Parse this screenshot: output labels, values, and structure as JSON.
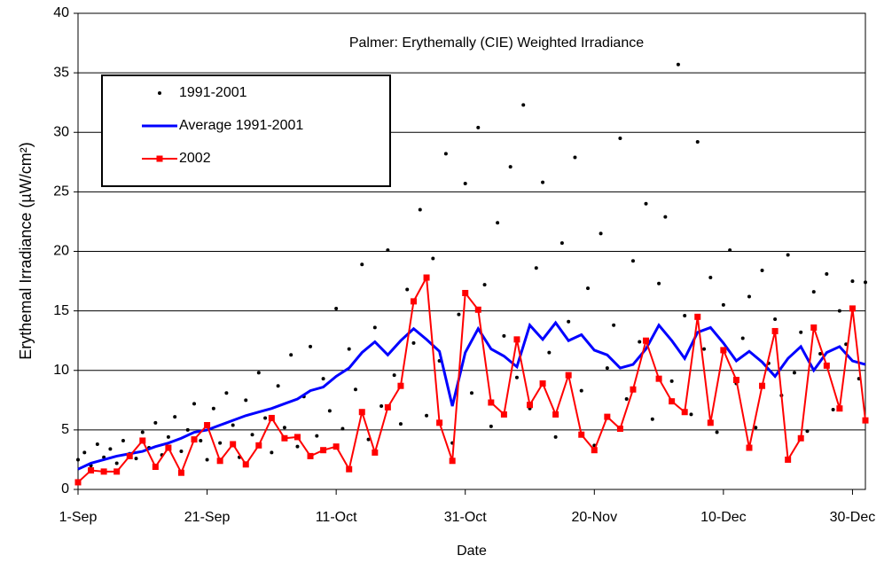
{
  "chart_data": {
    "type": "line",
    "title": "Palmer: Erythemally (CIE) Weighted Irradiance",
    "x_label": "Date",
    "y_label": "Erythemal Irradiance (µW/cm²)",
    "xlim": [
      0,
      122
    ],
    "xticks": [
      {
        "value": 0,
        "label": "1-Sep"
      },
      {
        "value": 20,
        "label": "21-Sep"
      },
      {
        "value": 40,
        "label": "11-Oct"
      },
      {
        "value": 60,
        "label": "31-Oct"
      },
      {
        "value": 80,
        "label": "20-Nov"
      },
      {
        "value": 100,
        "label": "10-Dec"
      },
      {
        "value": 120,
        "label": "30-Dec"
      }
    ],
    "ylim": [
      0,
      40
    ],
    "yticks": [
      0,
      5,
      10,
      15,
      20,
      25,
      30,
      35,
      40
    ],
    "grid": true,
    "legend": "upper left",
    "series": [
      {
        "name": "1991-2001",
        "color": "#000000",
        "style": "points",
        "x": [
          0,
          1,
          2,
          3,
          4,
          5,
          6,
          7,
          8,
          9,
          10,
          11,
          12,
          13,
          14,
          15,
          16,
          17,
          18,
          19,
          20,
          21,
          22,
          23,
          24,
          25,
          26,
          27,
          28,
          29,
          30,
          31,
          32,
          33,
          34,
          35,
          36,
          37,
          38,
          39,
          40,
          41,
          42,
          43,
          44,
          45,
          46,
          47,
          48,
          49,
          50,
          51,
          52,
          53,
          54,
          55,
          56,
          57,
          58,
          59,
          60,
          61,
          62,
          63,
          64,
          65,
          66,
          67,
          68,
          69,
          70,
          71,
          72,
          73,
          74,
          75,
          76,
          77,
          78,
          79,
          80,
          81,
          82,
          83,
          84,
          85,
          86,
          87,
          88,
          89,
          90,
          91,
          92,
          93,
          94,
          95,
          96,
          97,
          98,
          99,
          100,
          101,
          102,
          103,
          104,
          105,
          106,
          107,
          108,
          109,
          110,
          111,
          112,
          113,
          114,
          115,
          116,
          117,
          118,
          119,
          120,
          121,
          122
        ],
        "values": [
          2.5,
          3.1,
          2.0,
          3.8,
          2.7,
          3.4,
          2.2,
          4.1,
          3.0,
          2.6,
          4.8,
          3.5,
          5.6,
          2.9,
          4.4,
          6.1,
          3.2,
          5.0,
          7.2,
          4.1,
          2.5,
          6.8,
          3.9,
          8.1,
          5.4,
          2.7,
          7.5,
          4.6,
          9.8,
          6.0,
          3.1,
          8.7,
          5.2,
          11.3,
          3.6,
          7.8,
          12.0,
          4.5,
          9.3,
          6.6,
          15.2,
          5.1,
          11.8,
          8.4,
          18.9,
          4.2,
          13.6,
          7.0,
          20.1,
          9.6,
          5.5,
          16.8,
          12.3,
          23.5,
          6.2,
          19.4,
          10.8,
          28.2,
          3.9,
          14.7,
          25.7,
          8.1,
          30.4,
          17.2,
          5.3,
          22.4,
          12.9,
          27.1,
          9.4,
          32.3,
          6.8,
          18.6,
          25.8,
          11.5,
          4.4,
          20.7,
          14.1,
          27.9,
          8.3,
          16.9,
          3.7,
          21.5,
          10.2,
          13.8,
          29.5,
          7.6,
          19.2,
          12.4,
          24.0,
          5.9,
          17.3,
          22.9,
          9.1,
          35.7,
          14.6,
          6.3,
          29.2,
          11.8,
          17.8,
          4.8,
          15.5,
          20.1,
          8.9,
          12.7,
          16.2,
          5.2,
          18.4,
          10.6,
          14.3,
          7.9,
          19.7,
          9.8,
          13.2,
          4.9,
          16.6,
          11.4,
          18.1,
          6.7,
          15.0,
          12.2,
          17.5,
          9.3,
          17.4
        ]
      },
      {
        "name": "Average 1991-2001",
        "color": "#0000ff",
        "style": "line",
        "x": [
          0,
          2,
          4,
          6,
          8,
          10,
          12,
          14,
          16,
          18,
          20,
          22,
          24,
          26,
          28,
          30,
          32,
          34,
          36,
          38,
          40,
          42,
          44,
          46,
          48,
          50,
          52,
          54,
          56,
          58,
          60,
          62,
          64,
          66,
          68,
          70,
          72,
          74,
          76,
          78,
          80,
          82,
          84,
          86,
          88,
          90,
          92,
          94,
          96,
          98,
          100,
          102,
          104,
          106,
          108,
          110,
          112,
          114,
          116,
          118,
          120,
          122
        ],
        "values": [
          1.7,
          2.2,
          2.5,
          2.8,
          3.0,
          3.2,
          3.6,
          3.9,
          4.3,
          4.8,
          5.0,
          5.4,
          5.8,
          6.2,
          6.5,
          6.8,
          7.2,
          7.6,
          8.3,
          8.6,
          9.5,
          10.2,
          11.5,
          12.4,
          11.3,
          12.5,
          13.5,
          12.6,
          11.6,
          7.0,
          11.5,
          13.5,
          11.8,
          11.2,
          10.3,
          13.8,
          12.6,
          14.0,
          12.5,
          13.0,
          11.7,
          11.3,
          10.2,
          10.5,
          11.8,
          13.8,
          12.5,
          11.0,
          13.2,
          13.6,
          12.3,
          10.8,
          11.6,
          10.7,
          9.5,
          11.0,
          12.0,
          10.0,
          11.5,
          12.0,
          10.8,
          10.5
        ]
      },
      {
        "name": "2002",
        "color": "#ff0000",
        "style": "line-markers",
        "x": [
          0,
          2,
          4,
          6,
          8,
          10,
          12,
          14,
          16,
          18,
          20,
          22,
          24,
          26,
          28,
          30,
          32,
          34,
          36,
          38,
          40,
          42,
          44,
          46,
          48,
          50,
          52,
          54,
          56,
          58,
          60,
          62,
          64,
          66,
          68,
          70,
          72,
          74,
          76,
          78,
          80,
          82,
          84,
          86,
          88,
          90,
          92,
          94,
          96,
          98,
          100,
          102,
          104,
          106,
          108,
          110,
          112,
          114,
          116,
          118,
          120,
          122
        ],
        "values": [
          0.6,
          1.6,
          1.5,
          1.5,
          2.8,
          4.1,
          1.9,
          3.5,
          1.4,
          4.2,
          5.4,
          2.4,
          3.8,
          2.1,
          3.7,
          6.0,
          4.3,
          4.4,
          2.8,
          3.3,
          3.6,
          1.7,
          6.5,
          3.1,
          6.9,
          8.7,
          15.8,
          17.8,
          5.6,
          2.4,
          16.5,
          15.1,
          7.3,
          6.3,
          12.6,
          7.1,
          8.9,
          6.3,
          9.6,
          4.6,
          3.3,
          6.1,
          5.1,
          8.4,
          12.5,
          9.3,
          7.4,
          6.5,
          14.5,
          5.6,
          11.7,
          9.2,
          3.5,
          8.7,
          13.3,
          2.5,
          4.3,
          13.6,
          10.4,
          6.8,
          15.2,
          5.8
        ]
      }
    ]
  }
}
